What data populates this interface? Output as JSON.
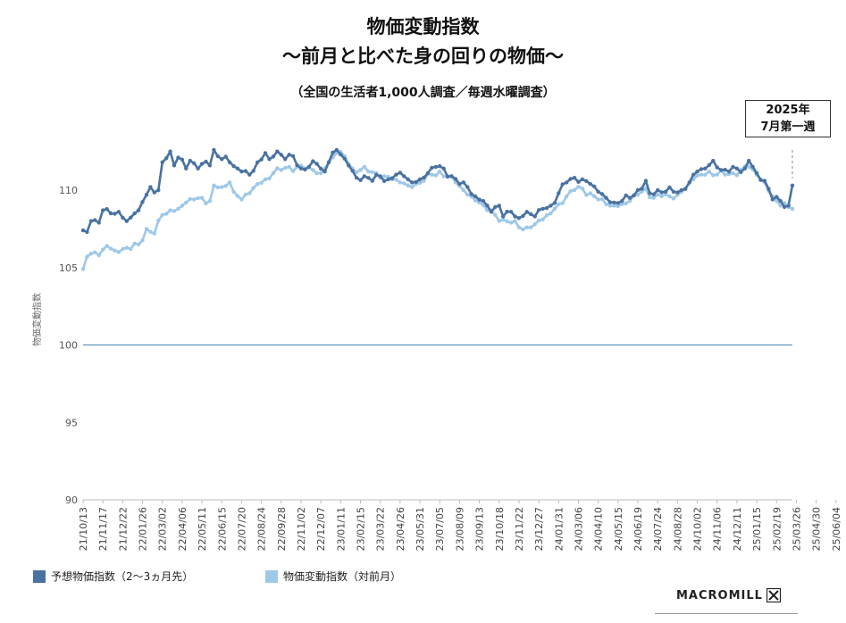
{
  "header": {
    "title": "物価変動指数",
    "subtitle": "～前月と比べた身の回りの物価～",
    "survey_note": "（全国の生活者1,000人調査／毎週水曜調査）"
  },
  "callout": {
    "line1": "2025年",
    "line2": "7月第一週"
  },
  "logo": {
    "text": "MACROMILL"
  },
  "colors": {
    "series1": "#4a72a0",
    "series2": "#9ec8e8",
    "baseline": "#4a86b4",
    "grid": "#dddddd"
  },
  "chart_data": {
    "type": "line",
    "ylabel": "物価変動指数",
    "ylim": [
      90,
      113
    ],
    "yticks": [
      90,
      95,
      100,
      105,
      110
    ],
    "reference_line": 100,
    "x_tick_labels": [
      "21/10/13",
      "21/11/17",
      "21/12/22",
      "22/01/26",
      "22/03/02",
      "22/04/06",
      "22/05/11",
      "22/06/15",
      "22/07/20",
      "22/08/24",
      "22/09/28",
      "22/11/02",
      "22/12/07",
      "23/01/11",
      "23/02/15",
      "23/03/22",
      "23/04/26",
      "23/05/31",
      "23/07/05",
      "23/08/09",
      "23/09/13",
      "23/10/18",
      "23/11/22",
      "23/12/27",
      "24/01/31",
      "24/03/06",
      "24/04/10",
      "24/05/15",
      "24/06/19",
      "24/07/24",
      "24/08/28",
      "24/10/02",
      "24/11/06",
      "24/12/11",
      "25/01/15",
      "25/02/19",
      "25/03/26",
      "25/04/30",
      "25/06/04"
    ],
    "weeks_per_tick": 5,
    "series": [
      {
        "name": "予想物価指数（2～3ヵ月先）",
        "anchors": [
          [
            0,
            107.4
          ],
          [
            1,
            107.3
          ],
          [
            2,
            108.0
          ],
          [
            4,
            107.9
          ],
          [
            5,
            108.7
          ],
          [
            7,
            108.5
          ],
          [
            9,
            108.6
          ],
          [
            11,
            108.0
          ],
          [
            13,
            108.5
          ],
          [
            14,
            108.7
          ],
          [
            16,
            109.7
          ],
          [
            17,
            110.2
          ],
          [
            19,
            110.0
          ],
          [
            20,
            111.8
          ],
          [
            22,
            112.5
          ],
          [
            23,
            111.6
          ],
          [
            24,
            112.1
          ],
          [
            26,
            111.4
          ],
          [
            27,
            111.9
          ],
          [
            29,
            111.4
          ],
          [
            30,
            111.7
          ],
          [
            32,
            111.6
          ],
          [
            33,
            112.6
          ],
          [
            35,
            112.0
          ],
          [
            37,
            111.8
          ],
          [
            39,
            111.4
          ],
          [
            40,
            111.2
          ],
          [
            42,
            111.0
          ],
          [
            44,
            111.8
          ],
          [
            46,
            112.4
          ],
          [
            47,
            112.0
          ],
          [
            49,
            112.5
          ],
          [
            51,
            112.0
          ],
          [
            53,
            112.2
          ],
          [
            55,
            111.4
          ],
          [
            57,
            111.5
          ],
          [
            59,
            111.7
          ],
          [
            61,
            111.2
          ],
          [
            62,
            111.8
          ],
          [
            64,
            112.6
          ],
          [
            65,
            112.3
          ],
          [
            67,
            111.6
          ],
          [
            69,
            110.8
          ],
          [
            71,
            110.9
          ],
          [
            73,
            110.6
          ],
          [
            75,
            110.9
          ],
          [
            77,
            110.7
          ],
          [
            79,
            111.0
          ],
          [
            81,
            110.9
          ],
          [
            83,
            110.5
          ],
          [
            85,
            110.7
          ],
          [
            87,
            111.1
          ],
          [
            89,
            111.5
          ],
          [
            91,
            111.4
          ],
          [
            93,
            110.9
          ],
          [
            95,
            110.4
          ],
          [
            97,
            110.2
          ],
          [
            99,
            109.6
          ],
          [
            101,
            109.3
          ],
          [
            103,
            108.6
          ],
          [
            105,
            109.0
          ],
          [
            106,
            108.3
          ],
          [
            108,
            108.6
          ],
          [
            110,
            108.2
          ],
          [
            112,
            108.6
          ],
          [
            114,
            108.3
          ],
          [
            116,
            108.8
          ],
          [
            118,
            109.0
          ],
          [
            120,
            109.8
          ],
          [
            122,
            110.5
          ],
          [
            124,
            110.8
          ],
          [
            126,
            110.7
          ],
          [
            128,
            110.4
          ],
          [
            130,
            109.9
          ],
          [
            132,
            109.5
          ],
          [
            134,
            109.2
          ],
          [
            136,
            109.3
          ],
          [
            138,
            109.5
          ],
          [
            140,
            110.0
          ],
          [
            142,
            110.6
          ],
          [
            143,
            109.8
          ],
          [
            145,
            110.0
          ],
          [
            147,
            109.9
          ],
          [
            149,
            109.9
          ],
          [
            151,
            110.0
          ],
          [
            153,
            110.5
          ],
          [
            155,
            111.2
          ],
          [
            157,
            111.4
          ],
          [
            159,
            111.9
          ],
          [
            161,
            111.3
          ],
          [
            163,
            111.2
          ],
          [
            165,
            111.4
          ],
          [
            167,
            111.4
          ],
          [
            168,
            111.9
          ],
          [
            170,
            111.1
          ],
          [
            172,
            110.6
          ],
          [
            174,
            109.4
          ],
          [
            176,
            109.3
          ],
          [
            178,
            109.0
          ],
          [
            179,
            110.3
          ]
        ]
      },
      {
        "name": "物価変動指数（対前月）",
        "anchors": [
          [
            0,
            104.9
          ],
          [
            1,
            105.7
          ],
          [
            2,
            105.9
          ],
          [
            4,
            105.8
          ],
          [
            6,
            106.4
          ],
          [
            8,
            106.1
          ],
          [
            10,
            106.2
          ],
          [
            12,
            106.2
          ],
          [
            14,
            106.5
          ],
          [
            16,
            107.5
          ],
          [
            18,
            107.2
          ],
          [
            20,
            108.4
          ],
          [
            22,
            108.7
          ],
          [
            24,
            108.8
          ],
          [
            26,
            109.2
          ],
          [
            28,
            109.4
          ],
          [
            30,
            109.5
          ],
          [
            32,
            109.3
          ],
          [
            33,
            110.3
          ],
          [
            35,
            110.2
          ],
          [
            37,
            110.5
          ],
          [
            38,
            109.9
          ],
          [
            40,
            109.4
          ],
          [
            42,
            109.8
          ],
          [
            44,
            110.4
          ],
          [
            46,
            110.7
          ],
          [
            48,
            111.1
          ],
          [
            50,
            111.3
          ],
          [
            52,
            111.5
          ],
          [
            54,
            111.5
          ],
          [
            56,
            111.4
          ],
          [
            58,
            111.3
          ],
          [
            60,
            111.1
          ],
          [
            62,
            111.8
          ],
          [
            64,
            112.4
          ],
          [
            66,
            112.2
          ],
          [
            68,
            111.4
          ],
          [
            70,
            111.3
          ],
          [
            72,
            111.2
          ],
          [
            74,
            111.1
          ],
          [
            76,
            110.9
          ],
          [
            78,
            110.7
          ],
          [
            80,
            110.5
          ],
          [
            82,
            110.3
          ],
          [
            84,
            110.4
          ],
          [
            86,
            110.6
          ],
          [
            88,
            111.0
          ],
          [
            90,
            111.2
          ],
          [
            92,
            110.9
          ],
          [
            94,
            110.5
          ],
          [
            96,
            110.0
          ],
          [
            98,
            109.6
          ],
          [
            100,
            109.2
          ],
          [
            102,
            108.7
          ],
          [
            104,
            108.4
          ],
          [
            106,
            108.1
          ],
          [
            108,
            107.9
          ],
          [
            110,
            107.6
          ],
          [
            112,
            107.6
          ],
          [
            114,
            107.8
          ],
          [
            116,
            108.1
          ],
          [
            118,
            108.5
          ],
          [
            120,
            109.1
          ],
          [
            122,
            109.6
          ],
          [
            124,
            110.0
          ],
          [
            126,
            110.1
          ],
          [
            128,
            109.8
          ],
          [
            130,
            109.4
          ],
          [
            132,
            109.1
          ],
          [
            134,
            109.0
          ],
          [
            136,
            109.1
          ],
          [
            138,
            109.3
          ],
          [
            140,
            109.7
          ],
          [
            142,
            110.1
          ],
          [
            144,
            109.5
          ],
          [
            146,
            109.6
          ],
          [
            148,
            109.6
          ],
          [
            150,
            109.7
          ],
          [
            152,
            110.1
          ],
          [
            154,
            110.7
          ],
          [
            156,
            111.0
          ],
          [
            158,
            111.2
          ],
          [
            160,
            111.0
          ],
          [
            162,
            111.0
          ],
          [
            164,
            111.1
          ],
          [
            166,
            111.3
          ],
          [
            168,
            111.5
          ],
          [
            170,
            111.0
          ],
          [
            172,
            110.5
          ],
          [
            174,
            109.6
          ],
          [
            176,
            109.0
          ],
          [
            178,
            108.9
          ],
          [
            179,
            108.8
          ]
        ]
      }
    ]
  }
}
